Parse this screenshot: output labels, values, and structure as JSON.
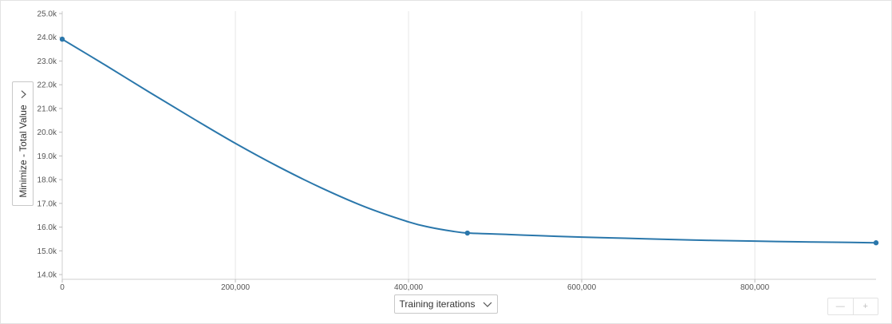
{
  "chart_data": {
    "type": "line",
    "title": "",
    "xlabel": "Training iterations",
    "ylabel": "Minimize - Total Value",
    "xlim": [
      0,
      940000
    ],
    "ylim": [
      13800,
      25100
    ],
    "x_ticks": [
      0,
      200000,
      400000,
      600000,
      800000
    ],
    "x_tick_labels": [
      "0",
      "200,000",
      "400,000",
      "600,000",
      "800,000"
    ],
    "y_ticks": [
      14000,
      15000,
      16000,
      17000,
      18000,
      19000,
      20000,
      21000,
      22000,
      23000,
      24000,
      25000
    ],
    "y_tick_labels": [
      "14.0k",
      "15.0k",
      "16.0k",
      "17.0k",
      "18.0k",
      "19.0k",
      "20.0k",
      "21.0k",
      "22.0k",
      "23.0k",
      "24.0k",
      "25.0k"
    ],
    "grid": true,
    "legend": "none",
    "color": "#2a77ab",
    "series": [
      {
        "x": [
          0,
          50000,
          100000,
          150000,
          200000,
          250000,
          300000,
          350000,
          400000,
          425000,
          450000,
          468000,
          500000,
          550000,
          600000,
          650000,
          700000,
          750000,
          800000,
          850000,
          900000,
          940000
        ],
        "y": [
          23920,
          22820,
          21700,
          20600,
          19530,
          18540,
          17640,
          16850,
          16220,
          15990,
          15830,
          15750,
          15710,
          15640,
          15580,
          15530,
          15480,
          15440,
          15410,
          15380,
          15360,
          15340
        ],
        "markers_at": [
          0,
          468000,
          940000
        ]
      }
    ]
  },
  "controls": {
    "y_selector_label": "Minimize - Total Value",
    "x_selector_label": "Training iterations",
    "zoom_out_symbol": "—",
    "zoom_in_symbol": "+"
  }
}
